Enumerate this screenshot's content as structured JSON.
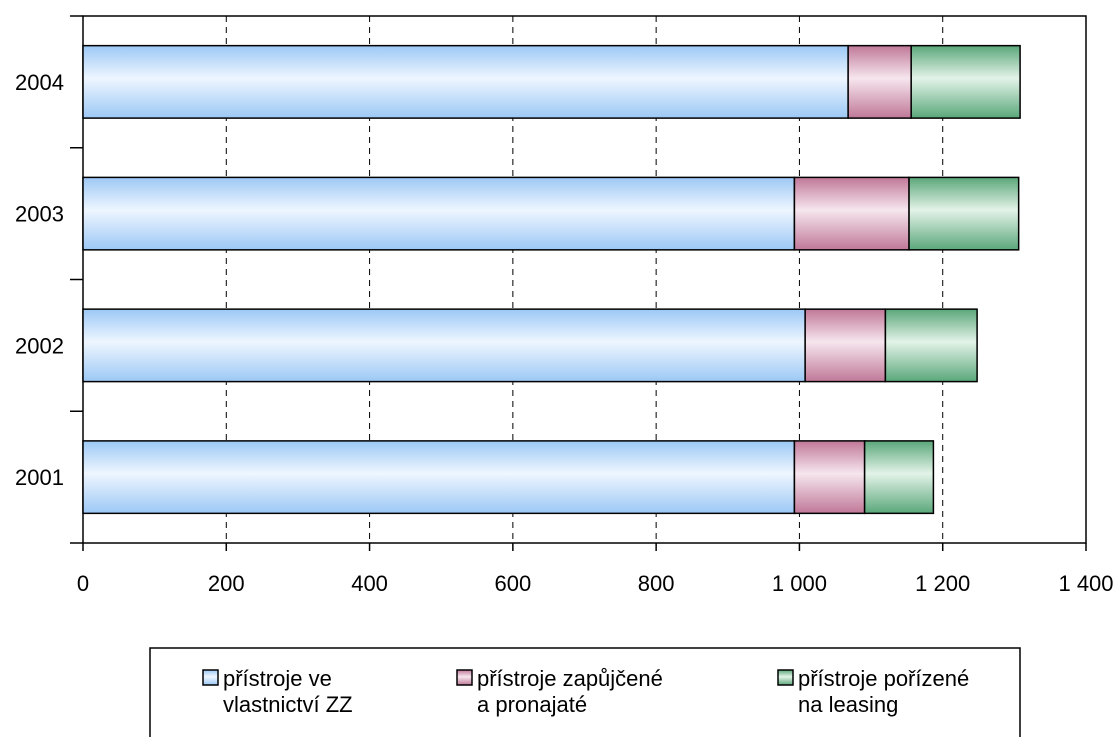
{
  "chart_data": {
    "type": "bar",
    "orientation": "horizontal",
    "stacked": true,
    "categories": [
      "2001",
      "2002",
      "2003",
      "2004"
    ],
    "series": [
      {
        "name": "přístroje ve vlastnictví ZZ",
        "name_lines": [
          "přístroje ve",
          "vlastnictví ZZ"
        ],
        "color": "#b8d9ff",
        "values": [
          993,
          1008,
          993,
          1068
        ]
      },
      {
        "name": "přístroje zapůjčené a pronajaté",
        "name_lines": [
          "přístroje zapůjčené",
          "a pronajaté"
        ],
        "color": "#d9a3bf",
        "values": [
          98,
          112,
          160,
          88
        ]
      },
      {
        "name": "přístroje pořízené na leasing",
        "name_lines": [
          "přístroje pořízené",
          "na leasing"
        ],
        "color": "#a8d8b8",
        "values": [
          96,
          128,
          153,
          152
        ]
      }
    ],
    "xlim": [
      0,
      1400
    ],
    "xticks": [
      0,
      200,
      400,
      600,
      800,
      1000,
      1200,
      1400
    ],
    "xtick_labels": [
      "0",
      "200",
      "400",
      "600",
      "800",
      "1 000",
      "1 200",
      "1 400"
    ],
    "grid": "vertical dashed",
    "legend": "bottom"
  }
}
